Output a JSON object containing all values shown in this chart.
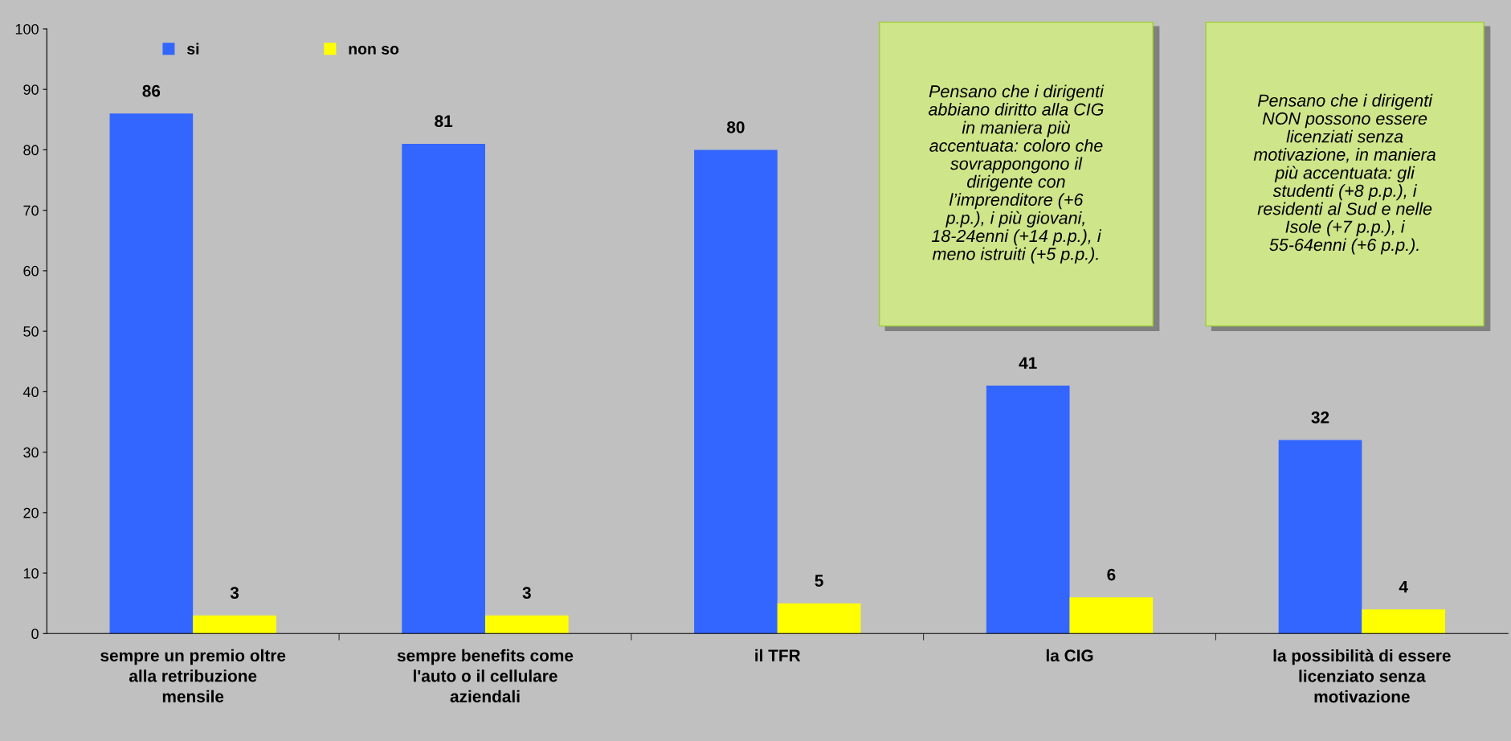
{
  "chart_data": {
    "type": "bar",
    "categories": [
      "sempre un premio oltre alla retribuzione mensile",
      "sempre benefits come l'auto o il cellulare aziendali",
      "il TFR",
      "la CIG",
      "la possibilità di essere licenziato senza motivazione"
    ],
    "series": [
      {
        "name": "si",
        "color": "#3366ff",
        "values": [
          86,
          81,
          80,
          41,
          32
        ]
      },
      {
        "name": "non so",
        "color": "#ffff00",
        "values": [
          3,
          3,
          5,
          6,
          4
        ]
      }
    ],
    "ylim": [
      0,
      100
    ],
    "yticks": [
      0,
      10,
      20,
      30,
      40,
      50,
      60,
      70,
      80,
      90,
      100
    ],
    "grid": false,
    "legend": "top left",
    "data_labels": true,
    "annotations": [
      "Pensano che i dirigenti abbiano diritto alla CIG in maniera più accentuata: coloro che sovrappongono il dirigente con l’imprenditore (+6 p.p.), i più giovani, 18-24enni (+14 p.p.), i meno istruiti (+5 p.p.).",
      "Pensano che i dirigenti NON possono essere licenziati senza motivazione, in maniera più accentuata: gli studenti (+8 p.p.), i residenti al Sud e nelle Isole (+7 p.p.), i 55-64enni (+6 p.p.)."
    ]
  }
}
